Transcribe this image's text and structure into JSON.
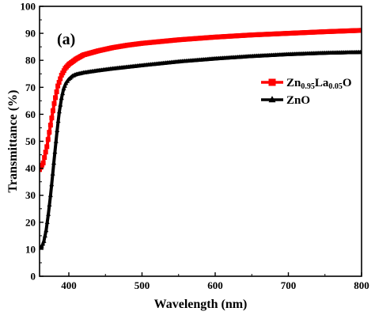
{
  "chart_data": {
    "type": "line",
    "title": "",
    "panel_label": "(a)",
    "xlabel": "Wavelength (nm)",
    "ylabel": "Transmittance (%)",
    "xlim": [
      360,
      800
    ],
    "ylim": [
      0,
      100
    ],
    "x_ticks": [
      400,
      500,
      600,
      700,
      800
    ],
    "y_ticks": [
      0,
      10,
      20,
      30,
      40,
      50,
      60,
      70,
      80,
      90,
      100
    ],
    "grid": false,
    "legend_position": "right",
    "series": [
      {
        "name_parts": [
          {
            "text": "Zn",
            "sub": false
          },
          {
            "text": "0.95",
            "sub": true
          },
          {
            "text": "La",
            "sub": false
          },
          {
            "text": "0.05",
            "sub": true
          },
          {
            "text": "O",
            "sub": false
          }
        ],
        "color": "#ff0000",
        "marker": "square",
        "x": [
          360,
          365,
          370,
          375,
          380,
          385,
          390,
          395,
          400,
          410,
          420,
          440,
          460,
          480,
          500,
          550,
          600,
          650,
          700,
          750,
          800
        ],
        "values": [
          39.5,
          42,
          48,
          56,
          64,
          70.5,
          74.5,
          77,
          78.5,
          80.5,
          82,
          83.5,
          84.7,
          85.6,
          86.3,
          87.6,
          88.6,
          89.4,
          90,
          90.6,
          91.1
        ]
      },
      {
        "name": "ZnO",
        "color": "#000000",
        "marker": "triangle",
        "x": [
          360,
          363,
          366,
          369,
          372,
          375,
          378,
          381,
          384,
          387,
          390,
          393,
          396,
          400,
          405,
          410,
          420,
          440,
          460,
          480,
          500,
          550,
          600,
          650,
          700,
          750,
          800
        ],
        "values": [
          10.5,
          11,
          13,
          17,
          23,
          30,
          38,
          46,
          54,
          61,
          66,
          69.5,
          71.5,
          73,
          74.2,
          74.8,
          75.4,
          76.2,
          76.9,
          77.5,
          78.1,
          79.5,
          80.6,
          81.5,
          82.2,
          82.7,
          83
        ]
      }
    ]
  }
}
